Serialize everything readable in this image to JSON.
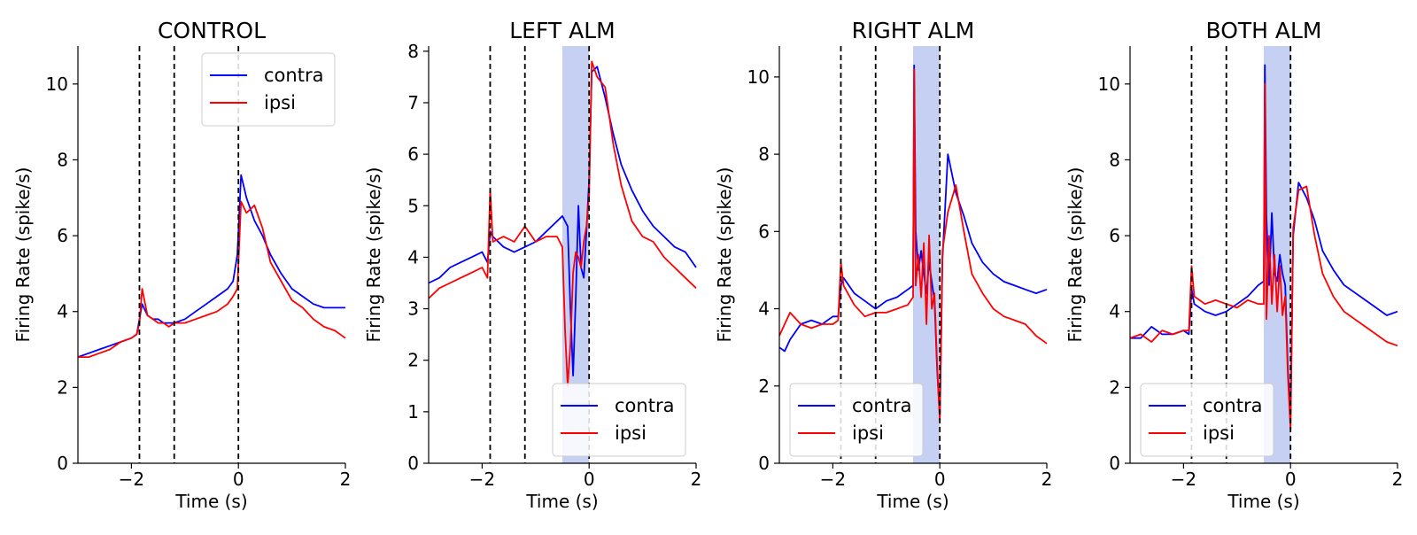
{
  "chart_data": [
    {
      "type": "line",
      "title": "CONTROL",
      "xlabel": "Time (s)",
      "ylabel": "Firing Rate (spike/s)",
      "xlim": [
        -3,
        2
      ],
      "ylim": [
        0,
        11
      ],
      "xticks": [
        -2,
        0,
        2
      ],
      "xtick_labels": [
        "−2",
        "0",
        "2"
      ],
      "yticks": [
        0,
        2,
        4,
        6,
        8,
        10
      ],
      "ytick_labels": [
        "0",
        "2",
        "4",
        "6",
        "8",
        "10"
      ],
      "vlines": [
        -1.85,
        -1.2,
        0
      ],
      "shaded_region": null,
      "legend": {
        "placement": "top-right",
        "entries": [
          "contra",
          "ipsi"
        ]
      },
      "series": [
        {
          "name": "contra",
          "color": "#0000ff",
          "x": [
            -3.0,
            -2.8,
            -2.6,
            -2.4,
            -2.2,
            -2.0,
            -1.9,
            -1.85,
            -1.8,
            -1.7,
            -1.6,
            -1.5,
            -1.4,
            -1.3,
            -1.2,
            -1.0,
            -0.8,
            -0.6,
            -0.4,
            -0.2,
            -0.1,
            -0.02,
            0.05,
            0.15,
            0.3,
            0.45,
            0.6,
            0.8,
            1.0,
            1.2,
            1.4,
            1.6,
            1.8,
            2.0
          ],
          "y": [
            2.8,
            2.9,
            3.0,
            3.1,
            3.2,
            3.3,
            3.4,
            3.8,
            4.2,
            3.9,
            3.8,
            3.8,
            3.7,
            3.7,
            3.7,
            3.8,
            4.0,
            4.2,
            4.4,
            4.6,
            4.8,
            5.5,
            7.6,
            7.0,
            6.4,
            6.0,
            5.5,
            5.0,
            4.6,
            4.4,
            4.2,
            4.1,
            4.1,
            4.1
          ]
        },
        {
          "name": "ipsi",
          "color": "#ff0000",
          "x": [
            -3.0,
            -2.8,
            -2.6,
            -2.4,
            -2.2,
            -2.0,
            -1.9,
            -1.85,
            -1.8,
            -1.7,
            -1.6,
            -1.5,
            -1.4,
            -1.3,
            -1.2,
            -1.0,
            -0.8,
            -0.6,
            -0.4,
            -0.2,
            -0.1,
            -0.02,
            0.05,
            0.15,
            0.3,
            0.45,
            0.6,
            0.8,
            1.0,
            1.2,
            1.4,
            1.6,
            1.8,
            2.0
          ],
          "y": [
            2.8,
            2.8,
            2.9,
            3.0,
            3.2,
            3.3,
            3.4,
            3.7,
            4.6,
            3.9,
            3.8,
            3.7,
            3.7,
            3.6,
            3.7,
            3.7,
            3.8,
            3.9,
            4.0,
            4.2,
            4.4,
            4.6,
            6.9,
            6.6,
            6.8,
            6.2,
            5.3,
            4.8,
            4.3,
            4.1,
            3.8,
            3.6,
            3.5,
            3.3
          ]
        }
      ]
    },
    {
      "type": "line",
      "title": "LEFT ALM",
      "xlabel": "Time (s)",
      "ylabel": "Firing Rate (spike/s)",
      "xlim": [
        -3,
        2
      ],
      "ylim": [
        0,
        8.1
      ],
      "xticks": [
        -2,
        0,
        2
      ],
      "xtick_labels": [
        "−2",
        "0",
        "2"
      ],
      "yticks": [
        0,
        1,
        2,
        3,
        4,
        5,
        6,
        7,
        8
      ],
      "ytick_labels": [
        "0",
        "1",
        "2",
        "3",
        "4",
        "5",
        "6",
        "7",
        "8"
      ],
      "vlines": [
        -1.85,
        -1.2,
        0
      ],
      "shaded_region": [
        -0.5,
        0
      ],
      "legend": {
        "placement": "bottom-right",
        "entries": [
          "contra",
          "ipsi"
        ]
      },
      "series": [
        {
          "name": "contra",
          "color": "#0000ff",
          "x": [
            -3.0,
            -2.8,
            -2.6,
            -2.4,
            -2.2,
            -2.0,
            -1.9,
            -1.85,
            -1.8,
            -1.6,
            -1.4,
            -1.2,
            -1.0,
            -0.8,
            -0.6,
            -0.5,
            -0.4,
            -0.35,
            -0.3,
            -0.25,
            -0.2,
            -0.15,
            -0.1,
            -0.05,
            0.0,
            0.05,
            0.15,
            0.3,
            0.45,
            0.6,
            0.8,
            1.0,
            1.2,
            1.4,
            1.6,
            1.8,
            2.0
          ],
          "y": [
            3.5,
            3.6,
            3.8,
            3.9,
            4.0,
            4.1,
            3.9,
            4.5,
            4.4,
            4.2,
            4.1,
            4.2,
            4.3,
            4.5,
            4.7,
            4.8,
            4.6,
            3.0,
            1.7,
            3.2,
            5.0,
            3.8,
            3.6,
            4.5,
            5.5,
            7.6,
            7.7,
            7.1,
            6.4,
            5.8,
            5.3,
            4.9,
            4.6,
            4.4,
            4.2,
            4.1,
            3.8
          ]
        },
        {
          "name": "ipsi",
          "color": "#ff0000",
          "x": [
            -3.0,
            -2.8,
            -2.6,
            -2.4,
            -2.2,
            -2.0,
            -1.9,
            -1.85,
            -1.8,
            -1.6,
            -1.4,
            -1.2,
            -1.0,
            -0.8,
            -0.6,
            -0.5,
            -0.45,
            -0.4,
            -0.35,
            -0.3,
            -0.25,
            -0.2,
            -0.15,
            -0.1,
            -0.05,
            0.0,
            0.05,
            0.15,
            0.3,
            0.45,
            0.6,
            0.8,
            1.0,
            1.2,
            1.4,
            1.6,
            1.8,
            2.0
          ],
          "y": [
            3.2,
            3.4,
            3.5,
            3.6,
            3.7,
            3.8,
            3.6,
            5.3,
            4.3,
            4.4,
            4.3,
            4.6,
            4.3,
            4.4,
            4.4,
            4.2,
            2.6,
            1.5,
            2.3,
            3.7,
            4.1,
            4.0,
            3.8,
            4.3,
            4.6,
            5.2,
            7.8,
            7.5,
            7.3,
            6.2,
            5.4,
            4.7,
            4.4,
            4.3,
            4.0,
            3.8,
            3.6,
            3.4
          ]
        }
      ]
    },
    {
      "type": "line",
      "title": "RIGHT ALM",
      "xlabel": "Time (s)",
      "ylabel": "Firing Rate (spike/s)",
      "xlim": [
        -3,
        2
      ],
      "ylim": [
        0,
        10.8
      ],
      "xticks": [
        -2,
        0,
        2
      ],
      "xtick_labels": [
        "−2",
        "0",
        "2"
      ],
      "yticks": [
        0,
        2,
        4,
        6,
        8,
        10
      ],
      "ytick_labels": [
        "0",
        "2",
        "4",
        "6",
        "8",
        "10"
      ],
      "vlines": [
        -1.85,
        -1.2,
        0
      ],
      "shaded_region": [
        -0.5,
        0
      ],
      "legend": {
        "placement": "bottom-left",
        "entries": [
          "contra",
          "ipsi"
        ]
      },
      "series": [
        {
          "name": "contra",
          "color": "#0000ff",
          "x": [
            -3.0,
            -2.9,
            -2.8,
            -2.6,
            -2.4,
            -2.2,
            -2.0,
            -1.9,
            -1.85,
            -1.8,
            -1.6,
            -1.4,
            -1.2,
            -1.0,
            -0.8,
            -0.6,
            -0.5,
            -0.48,
            -0.45,
            -0.4,
            -0.35,
            -0.3,
            -0.25,
            -0.2,
            -0.15,
            -0.1,
            -0.05,
            0.0,
            0.05,
            0.15,
            0.3,
            0.45,
            0.6,
            0.8,
            1.0,
            1.2,
            1.4,
            1.6,
            1.8,
            2.0
          ],
          "y": [
            3.0,
            2.9,
            3.2,
            3.6,
            3.7,
            3.6,
            3.8,
            3.8,
            4.6,
            4.8,
            4.4,
            4.2,
            4.0,
            4.2,
            4.3,
            4.5,
            4.6,
            10.3,
            6.0,
            5.0,
            5.5,
            4.9,
            4.4,
            5.2,
            4.7,
            4.2,
            2.4,
            1.2,
            5.3,
            8.0,
            7.0,
            6.4,
            5.7,
            5.2,
            4.9,
            4.7,
            4.6,
            4.5,
            4.4,
            4.5
          ]
        },
        {
          "name": "ipsi",
          "color": "#ff0000",
          "x": [
            -3.0,
            -2.9,
            -2.8,
            -2.6,
            -2.4,
            -2.2,
            -2.0,
            -1.9,
            -1.85,
            -1.8,
            -1.6,
            -1.4,
            -1.2,
            -1.0,
            -0.8,
            -0.6,
            -0.5,
            -0.48,
            -0.45,
            -0.4,
            -0.35,
            -0.3,
            -0.25,
            -0.2,
            -0.15,
            -0.1,
            -0.05,
            0.0,
            0.05,
            0.15,
            0.3,
            0.45,
            0.6,
            0.8,
            1.0,
            1.2,
            1.4,
            1.6,
            1.8,
            2.0
          ],
          "y": [
            3.3,
            3.6,
            3.9,
            3.6,
            3.5,
            3.6,
            3.6,
            3.7,
            5.2,
            4.6,
            4.1,
            3.8,
            3.9,
            3.9,
            4.0,
            4.1,
            4.3,
            10.2,
            4.6,
            5.4,
            4.3,
            5.7,
            3.6,
            5.9,
            4.0,
            4.4,
            2.5,
            1.1,
            5.5,
            6.5,
            7.2,
            6.0,
            4.9,
            4.4,
            4.0,
            3.8,
            3.7,
            3.6,
            3.3,
            3.1
          ]
        }
      ]
    },
    {
      "type": "line",
      "title": "BOTH ALM",
      "xlabel": "Time (s)",
      "ylabel": "Firing Rate (spike/s)",
      "xlim": [
        -3,
        2
      ],
      "ylim": [
        0,
        11
      ],
      "xticks": [
        -2,
        0,
        2
      ],
      "xtick_labels": [
        "−2",
        "0",
        "2"
      ],
      "yticks": [
        0,
        2,
        4,
        6,
        8,
        10
      ],
      "ytick_labels": [
        "0",
        "2",
        "4",
        "6",
        "8",
        "10"
      ],
      "vlines": [
        -1.85,
        -1.2,
        0
      ],
      "shaded_region": [
        -0.5,
        0
      ],
      "legend": {
        "placement": "bottom-left",
        "entries": [
          "contra",
          "ipsi"
        ]
      },
      "series": [
        {
          "name": "contra",
          "color": "#0000ff",
          "x": [
            -3.0,
            -2.8,
            -2.6,
            -2.4,
            -2.2,
            -2.0,
            -1.9,
            -1.85,
            -1.8,
            -1.6,
            -1.4,
            -1.2,
            -1.0,
            -0.8,
            -0.6,
            -0.5,
            -0.48,
            -0.45,
            -0.4,
            -0.35,
            -0.3,
            -0.25,
            -0.2,
            -0.15,
            -0.1,
            -0.05,
            0.0,
            0.05,
            0.15,
            0.3,
            0.45,
            0.6,
            0.8,
            1.0,
            1.2,
            1.4,
            1.6,
            1.8,
            2.0
          ],
          "y": [
            3.3,
            3.3,
            3.6,
            3.4,
            3.4,
            3.5,
            3.4,
            4.6,
            4.2,
            4.0,
            3.9,
            4.0,
            4.2,
            4.4,
            4.7,
            4.8,
            10.5,
            6.5,
            4.7,
            6.6,
            5.0,
            4.8,
            5.5,
            5.0,
            4.7,
            2.5,
            1.2,
            6.0,
            7.4,
            7.0,
            6.4,
            5.6,
            5.1,
            4.7,
            4.5,
            4.3,
            4.1,
            3.9,
            4.0
          ]
        },
        {
          "name": "ipsi",
          "color": "#ff0000",
          "x": [
            -3.0,
            -2.8,
            -2.6,
            -2.4,
            -2.2,
            -2.0,
            -1.9,
            -1.85,
            -1.8,
            -1.6,
            -1.4,
            -1.2,
            -1.0,
            -0.8,
            -0.6,
            -0.5,
            -0.48,
            -0.45,
            -0.4,
            -0.35,
            -0.3,
            -0.25,
            -0.2,
            -0.15,
            -0.1,
            -0.05,
            0.0,
            0.05,
            0.15,
            0.3,
            0.45,
            0.6,
            0.8,
            1.0,
            1.2,
            1.4,
            1.6,
            1.8,
            2.0
          ],
          "y": [
            3.3,
            3.4,
            3.2,
            3.5,
            3.4,
            3.5,
            3.5,
            5.2,
            4.4,
            4.2,
            4.3,
            4.2,
            4.1,
            4.3,
            4.2,
            4.2,
            10.0,
            3.8,
            6.0,
            4.2,
            5.5,
            4.0,
            5.2,
            3.9,
            4.4,
            2.3,
            0.9,
            6.2,
            7.2,
            7.3,
            6.0,
            5.0,
            4.4,
            4.0,
            3.8,
            3.6,
            3.4,
            3.2,
            3.1
          ]
        }
      ]
    }
  ]
}
